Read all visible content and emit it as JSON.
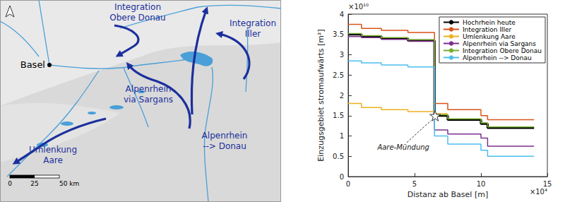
{
  "map": {
    "labels": [
      {
        "lines": [
          "Integration",
          "Obere Donau"
        ]
      },
      {
        "lines": [
          "Integration",
          "Iller"
        ]
      },
      {
        "lines": [
          "Basel"
        ]
      },
      {
        "lines": [
          "Alpenrhein",
          "via Sargans"
        ]
      },
      {
        "lines": [
          "Alpenrhein",
          "--> Donau"
        ]
      },
      {
        "lines": [
          "Umlenkung",
          "Aare"
        ]
      }
    ],
    "scale_bar": {
      "ticks": [
        0,
        25,
        50
      ],
      "unit": "km"
    }
  },
  "chart_data": {
    "type": "line",
    "line_style": "step",
    "x_label": "Distanz ab Basel [m]",
    "y_label": "Einzugsgebiet stromaufwärts [m²]",
    "x_multiplier": "×10⁴",
    "y_multiplier": "×10¹⁰",
    "x": [
      0,
      1,
      2.5,
      4.5,
      6.5,
      7.5,
      10,
      10.5,
      14
    ],
    "series": [
      {
        "name": "Hochrhein heute",
        "color": "#000000",
        "values": [
          3.5,
          3.45,
          3.4,
          3.35,
          1.5,
          1.4,
          1.3,
          1.2,
          1.2
        ]
      },
      {
        "name": "Integration Iller",
        "color": "#d95319",
        "values": [
          3.75,
          3.65,
          3.6,
          3.55,
          1.8,
          1.65,
          1.5,
          1.4,
          1.4
        ]
      },
      {
        "name": "Umlenkung Aare",
        "color": "#edb120",
        "values": [
          1.8,
          1.7,
          1.65,
          1.6,
          1.55,
          null,
          null,
          null,
          null
        ]
      },
      {
        "name": "Alpenrhein via Sargans",
        "color": "#7e2f8e",
        "values": [
          3.45,
          3.42,
          3.38,
          3.33,
          1.15,
          1.05,
          0.95,
          0.75,
          0.75
        ]
      },
      {
        "name": "Integration Obere Donau",
        "color": "#77ac30",
        "values": [
          3.52,
          3.47,
          3.42,
          3.37,
          1.52,
          1.42,
          1.32,
          1.22,
          1.22
        ]
      },
      {
        "name": "Alpenrhein --> Donau",
        "color": "#4dbeee",
        "values": [
          2.85,
          2.8,
          2.75,
          2.7,
          1.0,
          0.8,
          0.65,
          0.5,
          0.5
        ]
      }
    ],
    "xlim": [
      0,
      15
    ],
    "xticks": [
      0,
      5,
      10,
      15
    ],
    "ylim": [
      0,
      4
    ],
    "yticks": [
      0,
      0.5,
      1,
      1.5,
      2,
      2.5,
      3,
      3.5,
      4
    ],
    "annotation": {
      "text": "Aare-Mündung",
      "x": 6.55,
      "y": 1.5,
      "marker": "star"
    },
    "grid": false,
    "legend": "upper right"
  }
}
